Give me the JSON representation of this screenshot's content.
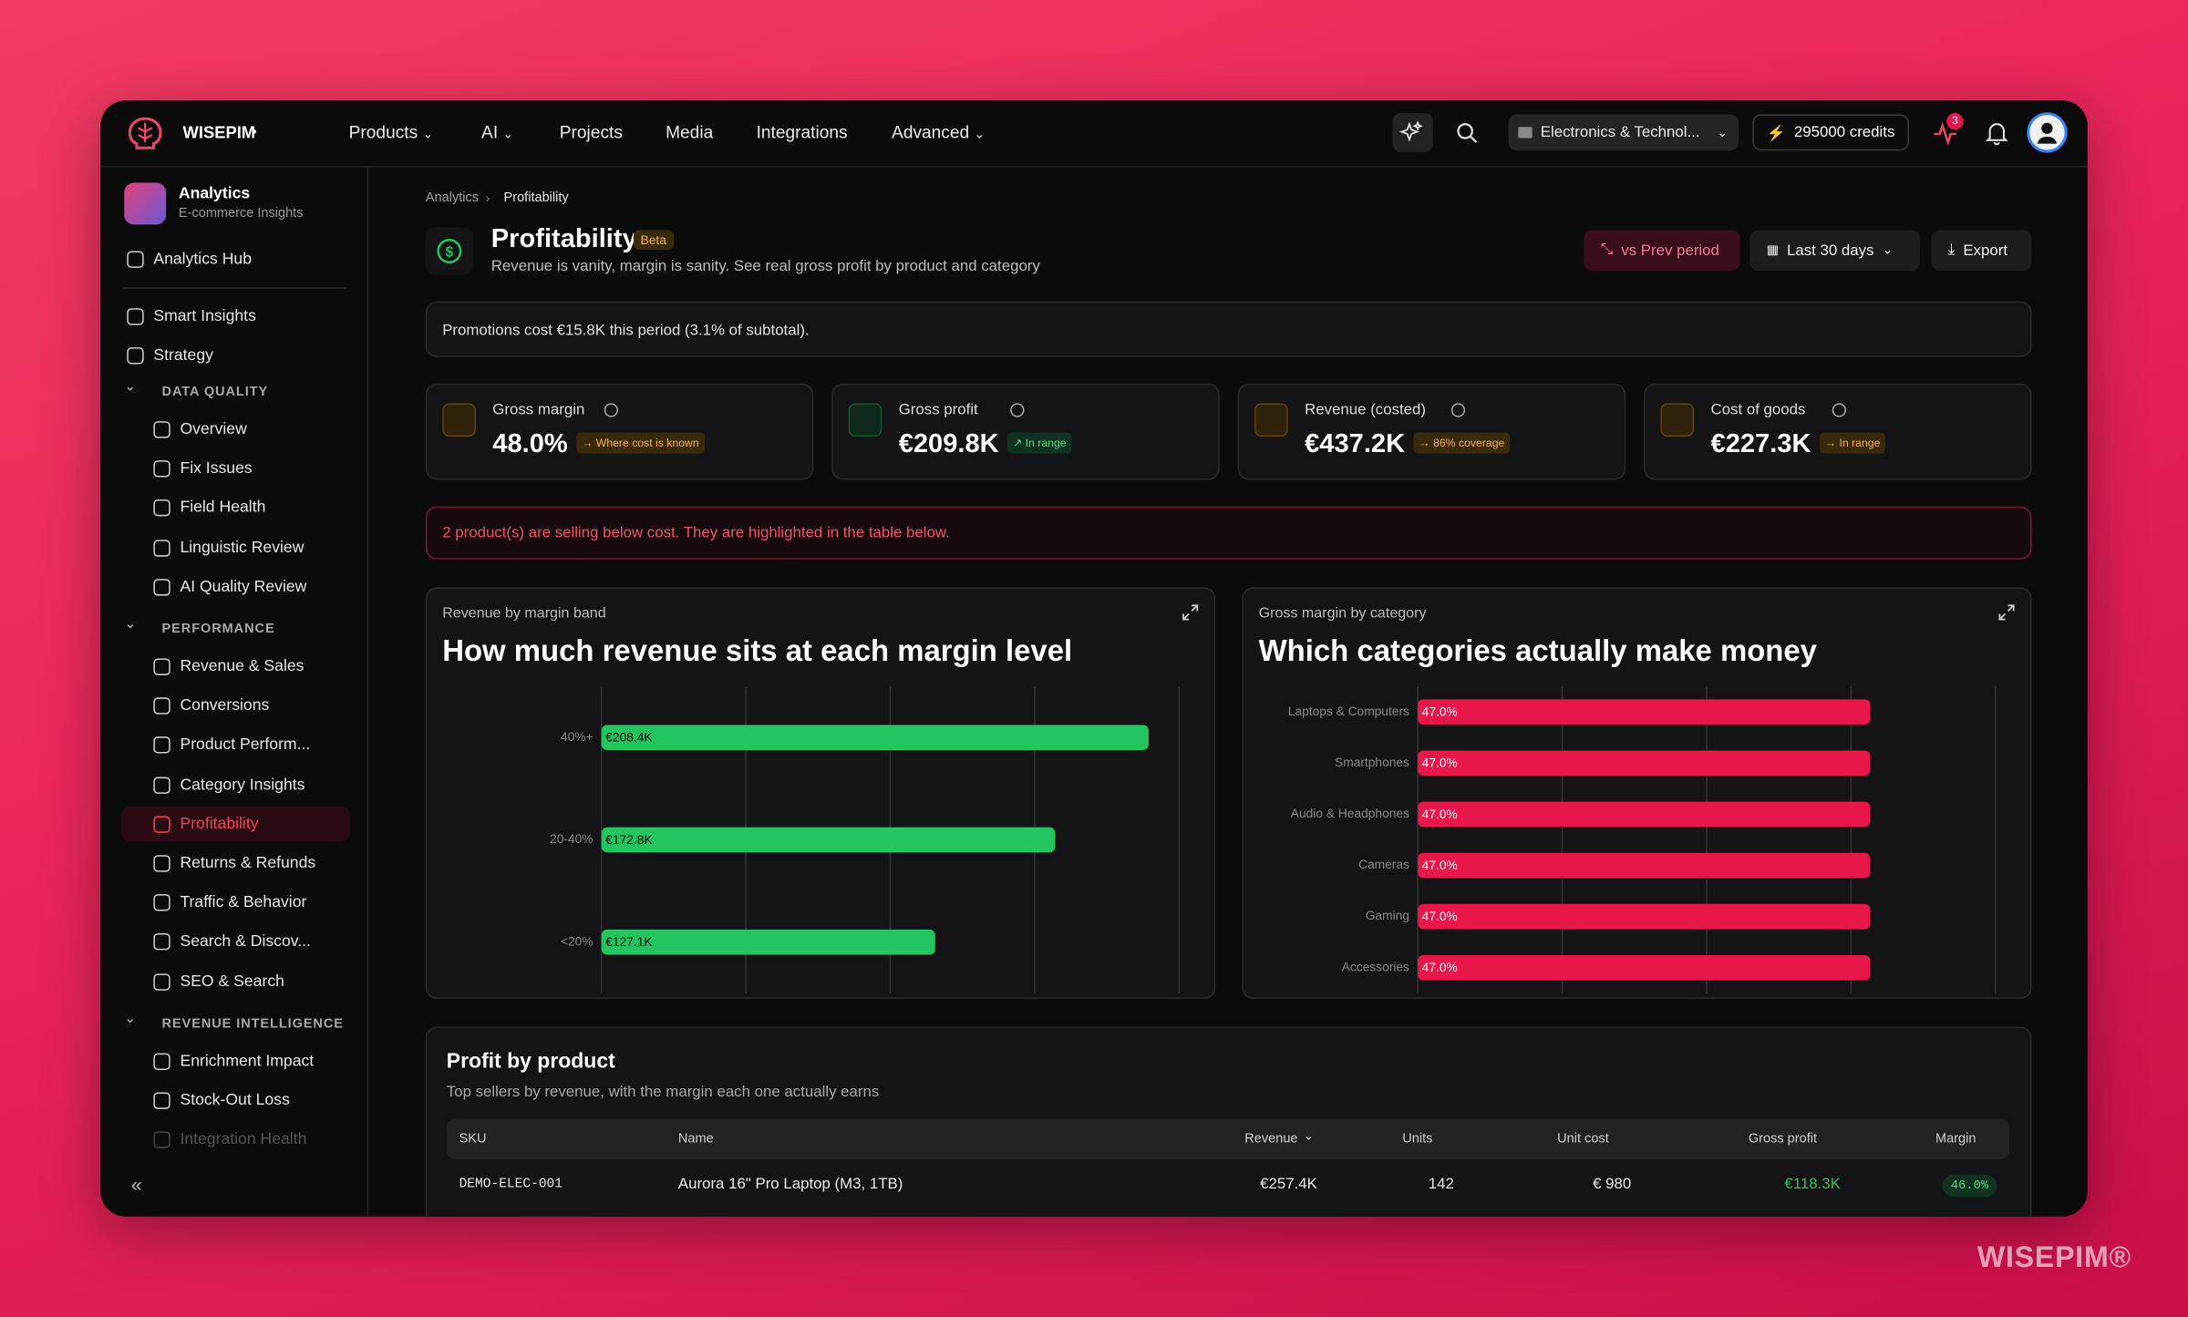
{
  "brand": "WISEPIM",
  "nav": [
    "Products",
    "AI",
    "Projects",
    "Media",
    "Integrations",
    "Advanced"
  ],
  "workspace": "Electronics & Technol...",
  "credits": "295000 credits",
  "notifications": "3",
  "sidebar": {
    "section_title": "Analytics",
    "section_subtitle": "E-commerce Insights",
    "hub": "Analytics Hub",
    "top": [
      "Smart Insights",
      "Strategy"
    ],
    "groups": [
      {
        "title": "DATA QUALITY",
        "items": [
          "Overview",
          "Fix Issues",
          "Field Health",
          "Linguistic Review",
          "AI Quality Review"
        ]
      },
      {
        "title": "PERFORMANCE",
        "items": [
          "Revenue & Sales",
          "Conversions",
          "Product Perform...",
          "Category Insights",
          "Profitability",
          "Returns & Refunds",
          "Traffic & Behavior",
          "Search & Discov...",
          "SEO & Search"
        ]
      },
      {
        "title": "REVENUE INTELLIGENCE",
        "items": [
          "Enrichment Impact",
          "Stock-Out Loss",
          "Integration Health"
        ]
      }
    ]
  },
  "breadcrumb": [
    "Analytics",
    "Profitability"
  ],
  "header": {
    "title": "Profitability",
    "badge": "Beta",
    "subtitle": "Revenue is vanity, margin is sanity. See real gross profit by product and category",
    "compare": "vs Prev period",
    "range": "Last 30 days",
    "export": "Export"
  },
  "promo_note": "Promotions cost €15.8K this period (3.1% of subtotal).",
  "kpis": [
    {
      "label": "Gross margin",
      "value": "48.0%",
      "tag": "→ Where cost is known"
    },
    {
      "label": "Gross profit",
      "value": "€209.8K",
      "tag": "↗ In range"
    },
    {
      "label": "Revenue (costed)",
      "value": "€437.2K",
      "tag": "→ 86% coverage"
    },
    {
      "label": "Cost of goods",
      "value": "€227.3K",
      "tag": "→ In range"
    }
  ],
  "alert": "2 product(s) are selling below cost. They are highlighted in the table below.",
  "chart_data": [
    {
      "type": "bar",
      "horizontal": true,
      "subtitle": "Revenue by margin band",
      "title": "How much revenue sits at each margin level",
      "categories": [
        "40%+",
        "20-40%",
        "<20%"
      ],
      "values": [
        208.4,
        172.8,
        127.1
      ],
      "value_labels": [
        "€208.4K",
        "€172.8K",
        "€127.1K"
      ],
      "color": "#22c55e",
      "xlim": [
        0,
        220
      ],
      "xticks": [
        0,
        55,
        110,
        165,
        220
      ],
      "grid": true
    },
    {
      "type": "bar",
      "horizontal": true,
      "subtitle": "Gross margin by category",
      "title": "Which categories actually make money",
      "categories": [
        "Laptops & Computers",
        "Smartphones",
        "Audio & Headphones",
        "Cameras",
        "Gaming",
        "Accessories"
      ],
      "values": [
        47.0,
        47.0,
        47.0,
        47.0,
        47.0,
        47.0
      ],
      "value_labels": [
        "47.0%",
        "47.0%",
        "47.0%",
        "47.0%",
        "47.0%",
        "47.0%"
      ],
      "color": "#e8174b",
      "xlim": [
        0,
        60
      ],
      "xticks": [
        0,
        15,
        30,
        45,
        60
      ],
      "grid": true
    }
  ],
  "table": {
    "title": "Profit by product",
    "subtitle": "Top sellers by revenue, with the margin each one actually earns",
    "columns": [
      "SKU",
      "Name",
      "Revenue",
      "Units",
      "Unit cost",
      "Gross profit",
      "Margin"
    ],
    "rows": [
      [
        "DEMO-ELEC-001",
        "Aurora 16\" Pro Laptop (M3, 1TB)",
        "€257.4K",
        "142",
        "€ 980",
        "€118.3K",
        "46.0%"
      ]
    ]
  },
  "watermark": "WISEPIM®"
}
